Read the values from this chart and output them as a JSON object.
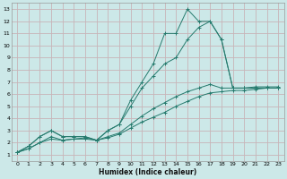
{
  "xlabel": "Humidex (Indice chaleur)",
  "bg_color": "#cce8e8",
  "grid_color": "#c8b4b8",
  "line_color": "#267b6e",
  "xlim": [
    -0.5,
    23.5
  ],
  "ylim": [
    0.5,
    13.5
  ],
  "xticks": [
    0,
    1,
    2,
    3,
    4,
    5,
    6,
    7,
    8,
    9,
    10,
    11,
    12,
    13,
    14,
    15,
    16,
    17,
    18,
    19,
    20,
    21,
    22,
    23
  ],
  "yticks": [
    1,
    2,
    3,
    4,
    5,
    6,
    7,
    8,
    9,
    10,
    11,
    12,
    13
  ],
  "line1_x": [
    0,
    1,
    2,
    3,
    4,
    5,
    6,
    7,
    8,
    9,
    10,
    11,
    12,
    13,
    14,
    15,
    16,
    17,
    18,
    19,
    20,
    21,
    22,
    23
  ],
  "line1_y": [
    1.2,
    1.7,
    2.5,
    3.0,
    2.5,
    2.5,
    2.5,
    2.2,
    3.0,
    3.5,
    5.5,
    7.0,
    8.5,
    11.0,
    11.0,
    13.0,
    12.0,
    12.0,
    10.5,
    6.5,
    6.5,
    6.5,
    6.5,
    6.5
  ],
  "line2_x": [
    0,
    1,
    2,
    3,
    4,
    5,
    6,
    7,
    8,
    9,
    10,
    11,
    12,
    13,
    14,
    15,
    16,
    17,
    18,
    19,
    20,
    21,
    22,
    23
  ],
  "line2_y": [
    1.2,
    1.7,
    2.5,
    3.0,
    2.5,
    2.5,
    2.5,
    2.2,
    3.0,
    3.5,
    5.0,
    6.5,
    7.5,
    8.5,
    9.0,
    10.5,
    11.5,
    12.0,
    10.5,
    6.5,
    6.5,
    6.5,
    6.5,
    6.5
  ],
  "line3_x": [
    0,
    1,
    2,
    3,
    4,
    5,
    6,
    7,
    8,
    9,
    10,
    11,
    12,
    13,
    14,
    15,
    16,
    17,
    18,
    19,
    20,
    21,
    22,
    23
  ],
  "line3_y": [
    1.2,
    1.5,
    2.0,
    2.5,
    2.2,
    2.3,
    2.4,
    2.2,
    2.5,
    2.8,
    3.5,
    4.2,
    4.8,
    5.3,
    5.8,
    6.2,
    6.5,
    6.8,
    6.5,
    6.5,
    6.5,
    6.6,
    6.6,
    6.6
  ],
  "line4_x": [
    0,
    1,
    2,
    3,
    4,
    5,
    6,
    7,
    8,
    9,
    10,
    11,
    12,
    13,
    14,
    15,
    16,
    17,
    18,
    19,
    20,
    21,
    22,
    23
  ],
  "line4_y": [
    1.2,
    1.5,
    2.0,
    2.3,
    2.2,
    2.3,
    2.3,
    2.2,
    2.4,
    2.7,
    3.2,
    3.7,
    4.1,
    4.5,
    5.0,
    5.4,
    5.8,
    6.1,
    6.2,
    6.3,
    6.3,
    6.4,
    6.5,
    6.5
  ]
}
